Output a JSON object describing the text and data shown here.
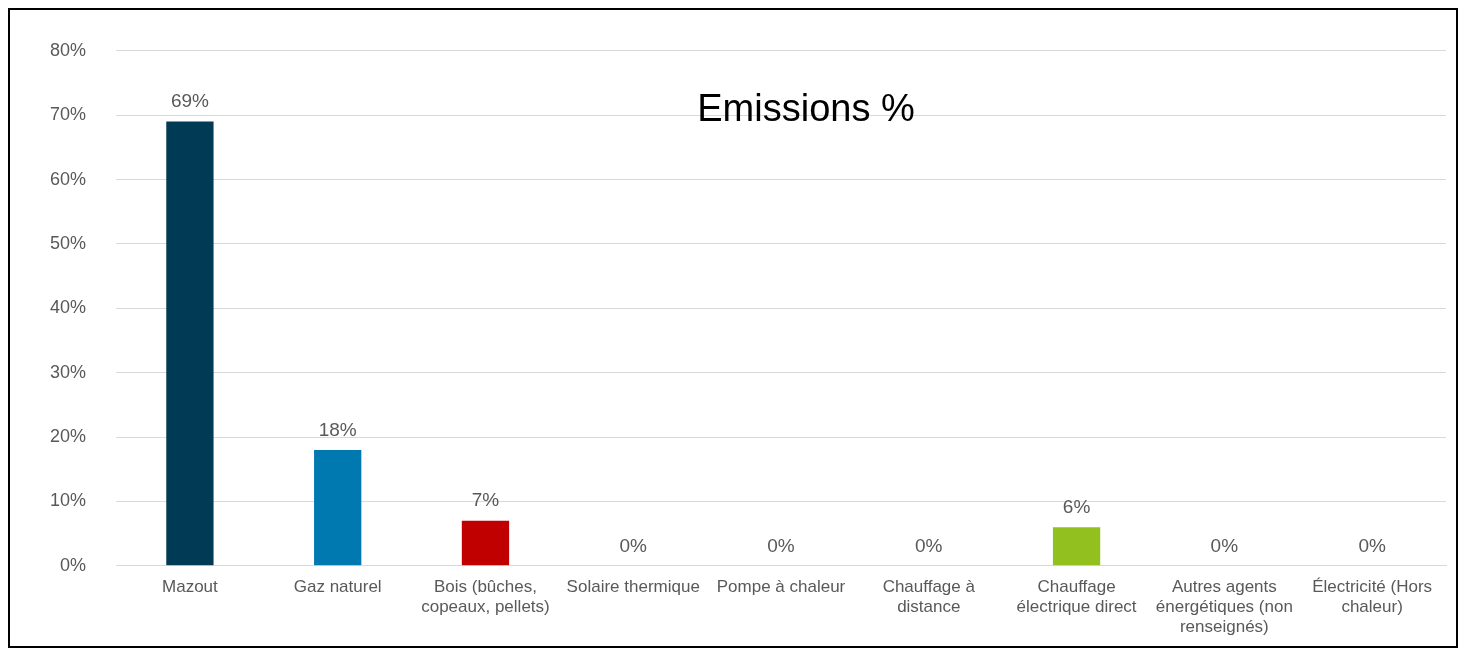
{
  "chart_data": {
    "type": "bar",
    "title": "Emissions %",
    "categories": [
      "Mazout",
      "Gaz naturel",
      "Bois (bûches, copeaux, pellets)",
      "Solaire thermique",
      "Pompe à chaleur",
      "Chauffage à distance",
      "Chauffage électrique direct",
      "Autres agents énergétiques (non renseignés)",
      "Électricité (Hors chaleur)"
    ],
    "values": [
      69,
      18,
      7,
      0,
      0,
      0,
      6,
      0,
      0
    ],
    "colors": [
      "#003a54",
      "#0079b0",
      "#c00000",
      "#a5a5a5",
      "#a5a5a5",
      "#a5a5a5",
      "#92c01f",
      "#a5a5a5",
      "#a5a5a5"
    ],
    "value_labels": [
      "69%",
      "18%",
      "7%",
      "0%",
      "0%",
      "0%",
      "6%",
      "0%",
      "0%"
    ],
    "ylim": [
      0,
      80
    ],
    "yticks": [
      {
        "value": 0,
        "label": "0%"
      },
      {
        "value": 10,
        "label": "10%"
      },
      {
        "value": 20,
        "label": "20%"
      },
      {
        "value": 30,
        "label": "30%"
      },
      {
        "value": 40,
        "label": "40%"
      },
      {
        "value": 50,
        "label": "50%"
      },
      {
        "value": 60,
        "label": "60%"
      },
      {
        "value": 70,
        "label": "70%"
      },
      {
        "value": 80,
        "label": "80%"
      }
    ],
    "grid": "y",
    "legend": false
  }
}
